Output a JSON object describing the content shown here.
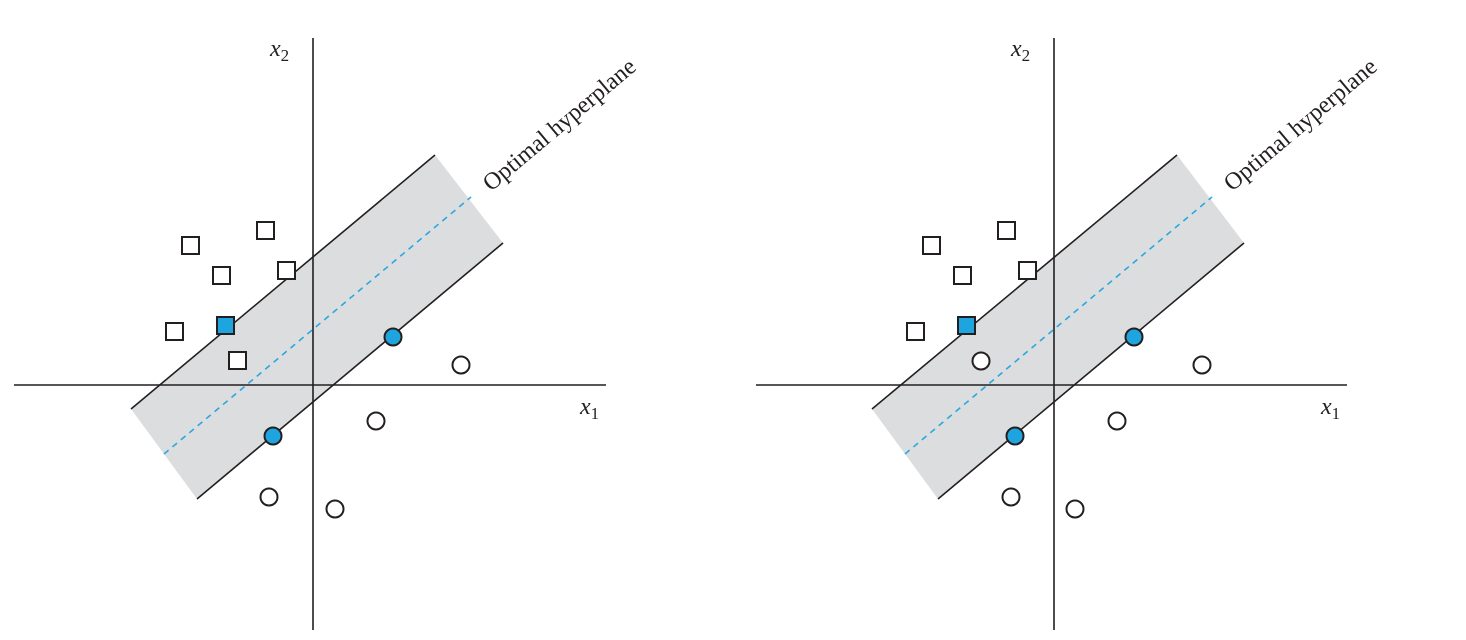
{
  "panels": [
    {
      "id": "left",
      "hyperplane_label": "Optimal hyperplane",
      "x_axis_label": "x",
      "x_axis_sub": "1",
      "y_axis_label": "x",
      "y_axis_sub": "2",
      "squares": [
        {
          "support": false
        },
        {
          "support": false
        },
        {
          "support": false
        },
        {
          "support": false
        },
        {
          "support": false
        },
        {
          "support": true
        },
        {
          "support": false
        }
      ],
      "circles": [
        {
          "support": true
        },
        {
          "support": false
        },
        {
          "support": true
        },
        {
          "support": false
        },
        {
          "support": false
        },
        {
          "support": false
        }
      ]
    },
    {
      "id": "right",
      "hyperplane_label": "Optimal hyperplane",
      "x_axis_label": "x",
      "x_axis_sub": "1",
      "y_axis_label": "x",
      "y_axis_sub": "2",
      "squares": [
        {
          "support": false
        },
        {
          "support": false
        },
        {
          "support": false
        },
        {
          "support": false
        },
        {
          "support": false
        },
        {
          "support": true
        }
      ],
      "circles": [
        {
          "support": false
        },
        {
          "support": true
        },
        {
          "support": false
        },
        {
          "support": true
        },
        {
          "support": false
        },
        {
          "support": false
        },
        {
          "support": false
        }
      ]
    }
  ],
  "colors": {
    "support_vector": "#1ea5df",
    "hyperplane": "#29a8e0",
    "margin_band": "#dcdddf"
  }
}
